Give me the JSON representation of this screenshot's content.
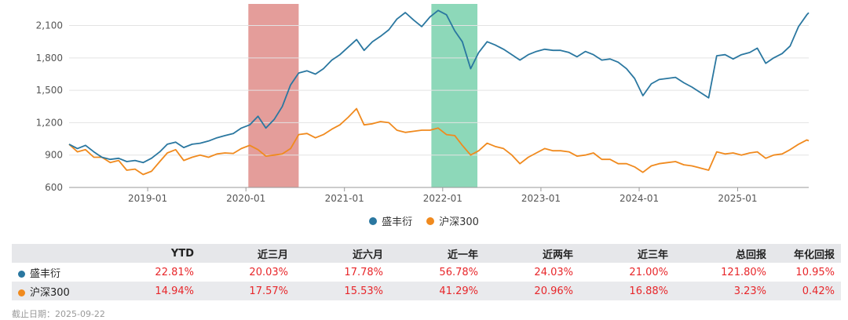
{
  "colors": {
    "series_blue": "#2a77a0",
    "series_orange": "#f08a1e",
    "highlight_red": "#d9746f",
    "highlight_green": "#5cc79b",
    "positive": "#e8262a"
  },
  "chart_data": {
    "type": "line",
    "x_range": [
      "2018-03-15",
      "2025-09-22"
    ],
    "ylim": [
      600,
      2300
    ],
    "yticks": [
      600,
      900,
      1200,
      1500,
      1800,
      2100
    ],
    "ytick_labels": [
      "600",
      "900",
      "1,200",
      "1,500",
      "1,800",
      "2,100"
    ],
    "xtick_labels": [
      "2019-01",
      "2020-01",
      "2021-01",
      "2022-01",
      "2023-01",
      "2024-01",
      "2025-01"
    ],
    "xtick_dates": [
      "2019-01-01",
      "2020-01-01",
      "2021-01-01",
      "2022-01-01",
      "2023-01-01",
      "2024-01-01",
      "2025-01-01"
    ],
    "highlight_bands": [
      {
        "start": "2020-01-10",
        "end": "2020-07-15",
        "color": "red"
      },
      {
        "start": "2021-11-20",
        "end": "2022-05-10",
        "color": "green"
      }
    ],
    "legend_position": "bottom-center",
    "series": [
      {
        "name": "盛丰衍",
        "points": [
          [
            "2018-03-15",
            1000
          ],
          [
            "2018-04-15",
            960
          ],
          [
            "2018-05-15",
            990
          ],
          [
            "2018-06-15",
            930
          ],
          [
            "2018-07-15",
            880
          ],
          [
            "2018-08-15",
            860
          ],
          [
            "2018-09-15",
            870
          ],
          [
            "2018-10-15",
            840
          ],
          [
            "2018-11-15",
            850
          ],
          [
            "2018-12-15",
            830
          ],
          [
            "2019-01-15",
            870
          ],
          [
            "2019-02-15",
            930
          ],
          [
            "2019-03-15",
            1000
          ],
          [
            "2019-04-15",
            1020
          ],
          [
            "2019-05-15",
            970
          ],
          [
            "2019-06-15",
            1000
          ],
          [
            "2019-07-15",
            1010
          ],
          [
            "2019-08-15",
            1030
          ],
          [
            "2019-09-15",
            1060
          ],
          [
            "2019-10-15",
            1080
          ],
          [
            "2019-11-15",
            1100
          ],
          [
            "2019-12-15",
            1150
          ],
          [
            "2020-01-15",
            1180
          ],
          [
            "2020-02-15",
            1260
          ],
          [
            "2020-03-15",
            1150
          ],
          [
            "2020-04-15",
            1230
          ],
          [
            "2020-05-15",
            1350
          ],
          [
            "2020-06-15",
            1550
          ],
          [
            "2020-07-15",
            1660
          ],
          [
            "2020-08-15",
            1680
          ],
          [
            "2020-09-15",
            1650
          ],
          [
            "2020-10-15",
            1700
          ],
          [
            "2020-11-15",
            1780
          ],
          [
            "2020-12-15",
            1830
          ],
          [
            "2021-01-15",
            1900
          ],
          [
            "2021-02-15",
            1970
          ],
          [
            "2021-03-15",
            1870
          ],
          [
            "2021-04-15",
            1950
          ],
          [
            "2021-05-15",
            2000
          ],
          [
            "2021-06-15",
            2060
          ],
          [
            "2021-07-15",
            2160
          ],
          [
            "2021-08-15",
            2220
          ],
          [
            "2021-09-15",
            2150
          ],
          [
            "2021-10-15",
            2090
          ],
          [
            "2021-11-15",
            2180
          ],
          [
            "2021-12-15",
            2240
          ],
          [
            "2022-01-15",
            2200
          ],
          [
            "2022-02-15",
            2050
          ],
          [
            "2022-03-15",
            1950
          ],
          [
            "2022-04-15",
            1700
          ],
          [
            "2022-05-15",
            1850
          ],
          [
            "2022-06-15",
            1950
          ],
          [
            "2022-07-15",
            1920
          ],
          [
            "2022-08-15",
            1880
          ],
          [
            "2022-09-15",
            1830
          ],
          [
            "2022-10-15",
            1780
          ],
          [
            "2022-11-15",
            1830
          ],
          [
            "2022-12-15",
            1860
          ],
          [
            "2023-01-15",
            1880
          ],
          [
            "2023-02-15",
            1870
          ],
          [
            "2023-03-15",
            1870
          ],
          [
            "2023-04-15",
            1850
          ],
          [
            "2023-05-15",
            1810
          ],
          [
            "2023-06-15",
            1860
          ],
          [
            "2023-07-15",
            1830
          ],
          [
            "2023-08-15",
            1780
          ],
          [
            "2023-09-15",
            1790
          ],
          [
            "2023-10-15",
            1760
          ],
          [
            "2023-11-15",
            1700
          ],
          [
            "2023-12-15",
            1610
          ],
          [
            "2024-01-15",
            1450
          ],
          [
            "2024-02-15",
            1560
          ],
          [
            "2024-03-15",
            1600
          ],
          [
            "2024-04-15",
            1610
          ],
          [
            "2024-05-15",
            1620
          ],
          [
            "2024-06-15",
            1570
          ],
          [
            "2024-07-15",
            1530
          ],
          [
            "2024-08-15",
            1480
          ],
          [
            "2024-09-15",
            1430
          ],
          [
            "2024-10-15",
            1820
          ],
          [
            "2024-11-15",
            1830
          ],
          [
            "2024-12-15",
            1790
          ],
          [
            "2025-01-15",
            1830
          ],
          [
            "2025-02-15",
            1850
          ],
          [
            "2025-03-15",
            1890
          ],
          [
            "2025-04-15",
            1750
          ],
          [
            "2025-05-15",
            1800
          ],
          [
            "2025-06-15",
            1840
          ],
          [
            "2025-07-15",
            1910
          ],
          [
            "2025-08-15",
            2090
          ],
          [
            "2025-09-15",
            2200
          ],
          [
            "2025-09-22",
            2218
          ]
        ]
      },
      {
        "name": "沪深300",
        "points": [
          [
            "2018-03-15",
            1000
          ],
          [
            "2018-04-15",
            930
          ],
          [
            "2018-05-15",
            950
          ],
          [
            "2018-06-15",
            880
          ],
          [
            "2018-07-15",
            880
          ],
          [
            "2018-08-15",
            830
          ],
          [
            "2018-09-15",
            850
          ],
          [
            "2018-10-15",
            760
          ],
          [
            "2018-11-15",
            770
          ],
          [
            "2018-12-15",
            720
          ],
          [
            "2019-01-15",
            750
          ],
          [
            "2019-02-15",
            840
          ],
          [
            "2019-03-15",
            920
          ],
          [
            "2019-04-15",
            950
          ],
          [
            "2019-05-15",
            850
          ],
          [
            "2019-06-15",
            880
          ],
          [
            "2019-07-15",
            900
          ],
          [
            "2019-08-15",
            880
          ],
          [
            "2019-09-15",
            910
          ],
          [
            "2019-10-15",
            920
          ],
          [
            "2019-11-15",
            915
          ],
          [
            "2019-12-15",
            960
          ],
          [
            "2020-01-15",
            990
          ],
          [
            "2020-02-15",
            950
          ],
          [
            "2020-03-15",
            890
          ],
          [
            "2020-04-15",
            900
          ],
          [
            "2020-05-15",
            910
          ],
          [
            "2020-06-15",
            960
          ],
          [
            "2020-07-15",
            1090
          ],
          [
            "2020-08-15",
            1100
          ],
          [
            "2020-09-15",
            1060
          ],
          [
            "2020-10-15",
            1090
          ],
          [
            "2020-11-15",
            1140
          ],
          [
            "2020-12-15",
            1180
          ],
          [
            "2021-01-15",
            1250
          ],
          [
            "2021-02-15",
            1330
          ],
          [
            "2021-03-15",
            1180
          ],
          [
            "2021-04-15",
            1190
          ],
          [
            "2021-05-15",
            1210
          ],
          [
            "2021-06-15",
            1200
          ],
          [
            "2021-07-15",
            1130
          ],
          [
            "2021-08-15",
            1110
          ],
          [
            "2021-09-15",
            1120
          ],
          [
            "2021-10-15",
            1130
          ],
          [
            "2021-11-15",
            1130
          ],
          [
            "2021-12-15",
            1150
          ],
          [
            "2022-01-15",
            1090
          ],
          [
            "2022-02-15",
            1080
          ],
          [
            "2022-03-15",
            990
          ],
          [
            "2022-04-15",
            900
          ],
          [
            "2022-05-15",
            940
          ],
          [
            "2022-06-15",
            1010
          ],
          [
            "2022-07-15",
            980
          ],
          [
            "2022-08-15",
            960
          ],
          [
            "2022-09-15",
            900
          ],
          [
            "2022-10-15",
            820
          ],
          [
            "2022-11-15",
            880
          ],
          [
            "2022-12-15",
            920
          ],
          [
            "2023-01-15",
            960
          ],
          [
            "2023-02-15",
            940
          ],
          [
            "2023-03-15",
            940
          ],
          [
            "2023-04-15",
            930
          ],
          [
            "2023-05-15",
            890
          ],
          [
            "2023-06-15",
            900
          ],
          [
            "2023-07-15",
            920
          ],
          [
            "2023-08-15",
            860
          ],
          [
            "2023-09-15",
            860
          ],
          [
            "2023-10-15",
            820
          ],
          [
            "2023-11-15",
            820
          ],
          [
            "2023-12-15",
            790
          ],
          [
            "2024-01-15",
            740
          ],
          [
            "2024-02-15",
            800
          ],
          [
            "2024-03-15",
            820
          ],
          [
            "2024-04-15",
            830
          ],
          [
            "2024-05-15",
            840
          ],
          [
            "2024-06-15",
            810
          ],
          [
            "2024-07-15",
            800
          ],
          [
            "2024-08-15",
            780
          ],
          [
            "2024-09-15",
            760
          ],
          [
            "2024-10-15",
            930
          ],
          [
            "2024-11-15",
            910
          ],
          [
            "2024-12-15",
            920
          ],
          [
            "2025-01-15",
            900
          ],
          [
            "2025-02-15",
            920
          ],
          [
            "2025-03-15",
            930
          ],
          [
            "2025-04-15",
            870
          ],
          [
            "2025-05-15",
            900
          ],
          [
            "2025-06-15",
            910
          ],
          [
            "2025-07-15",
            950
          ],
          [
            "2025-08-15",
            1000
          ],
          [
            "2025-09-15",
            1040
          ],
          [
            "2025-09-22",
            1032
          ]
        ]
      }
    ]
  },
  "table": {
    "headers": [
      "",
      "YTD",
      "近三月",
      "近六月",
      "近一年",
      "近两年",
      "近三年",
      "总回报",
      "年化回报"
    ],
    "rows": [
      {
        "name": "盛丰衍",
        "values": [
          "22.81%",
          "20.03%",
          "17.78%",
          "56.78%",
          "24.03%",
          "21.00%",
          "121.80%",
          "10.95%"
        ]
      },
      {
        "name": "沪深300",
        "values": [
          "14.94%",
          "17.57%",
          "15.53%",
          "41.29%",
          "20.96%",
          "16.88%",
          "3.23%",
          "0.42%"
        ]
      }
    ]
  },
  "footer": {
    "date_text": "截止日期：2025-09-22"
  }
}
